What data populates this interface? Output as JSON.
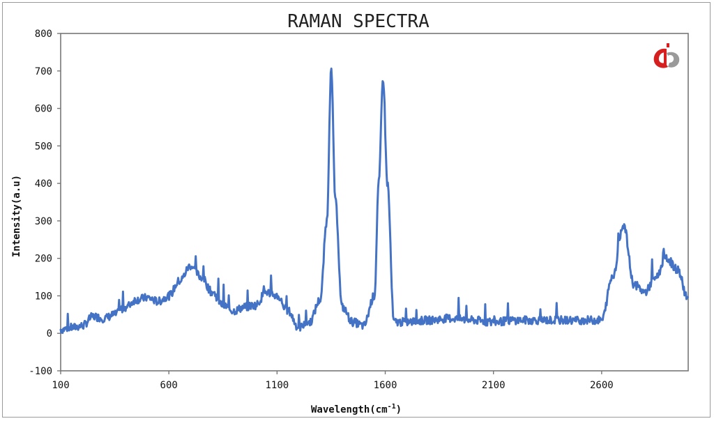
{
  "chart_data": {
    "type": "line",
    "title": "RAMAN SPECTRA",
    "xlabel": "Wavelength(cm",
    "xlabel_sup": "-1",
    "xlabel_close": ")",
    "ylabel": "Intensity(a.u)",
    "xlim": [
      100,
      3000
    ],
    "ylim": [
      -100,
      800
    ],
    "xticks": [
      100,
      600,
      1100,
      1600,
      2100,
      2600
    ],
    "xtick_labels": [
      "100",
      "600",
      "1100",
      "1600",
      "2100",
      "2600"
    ],
    "yticks": [
      -100,
      0,
      100,
      200,
      300,
      400,
      500,
      600,
      700,
      800
    ],
    "ytick_labels": [
      "-100",
      "0",
      "100",
      "200",
      "300",
      "400",
      "500",
      "600",
      "700",
      "800"
    ],
    "grid": false,
    "legend": "none",
    "color": "#4472c4",
    "series": [
      {
        "x": [
          100,
          150,
          200,
          250,
          300,
          350,
          400,
          450,
          500,
          550,
          600,
          650,
          700,
          750,
          800,
          850,
          900,
          950,
          1000,
          1050,
          1100,
          1150,
          1200,
          1250,
          1300,
          1330,
          1350,
          1370,
          1400,
          1450,
          1500,
          1550,
          1570,
          1590,
          1610,
          1640,
          1700,
          1800,
          1900,
          2000,
          2100,
          2200,
          2300,
          2400,
          2500,
          2600,
          2650,
          2700,
          2750,
          2800,
          2850,
          2900,
          2950,
          3000
        ],
        "y": [
          10,
          15,
          20,
          45,
          40,
          50,
          70,
          90,
          95,
          85,
          100,
          140,
          180,
          150,
          110,
          75,
          60,
          70,
          75,
          110,
          100,
          60,
          15,
          30,
          90,
          300,
          700,
          350,
          70,
          30,
          20,
          100,
          400,
          680,
          400,
          30,
          30,
          35,
          40,
          35,
          30,
          35,
          35,
          35,
          35,
          35,
          150,
          290,
          130,
          110,
          150,
          200,
          170,
          90
        ]
      }
    ]
  },
  "logo": {
    "name": "ti-logo-icon",
    "colors": [
      "#d62020",
      "#9a9a9a"
    ]
  }
}
